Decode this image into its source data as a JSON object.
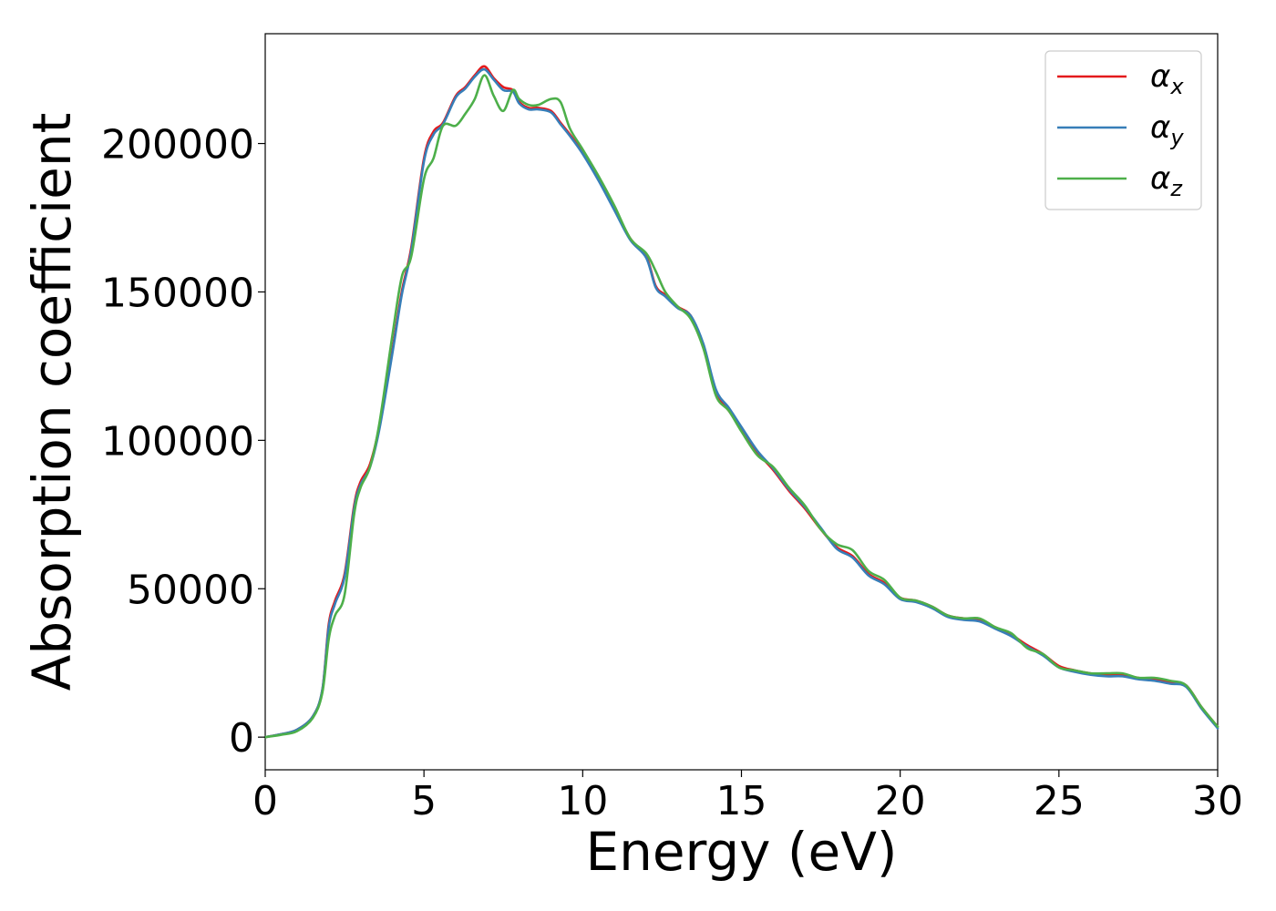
{
  "chart_data": {
    "type": "line",
    "xlabel": "Energy (eV)",
    "ylabel": "Absorption coefficient",
    "xlim": [
      0,
      30
    ],
    "ylim": [
      -11000,
      237000
    ],
    "xticks": [
      0,
      5,
      10,
      15,
      20,
      25,
      30
    ],
    "xtick_labels": [
      "0",
      "5",
      "10",
      "15",
      "20",
      "25",
      "30"
    ],
    "yticks": [
      0,
      50000,
      100000,
      150000,
      200000
    ],
    "ytick_labels": [
      "0",
      "50000",
      "100000",
      "150000",
      "200000"
    ],
    "grid": false,
    "legend_position": "top-right",
    "series": [
      {
        "name": "α",
        "subscript": "x",
        "color": "#e41a1c",
        "x": [
          0,
          0.5,
          1,
          1.5,
          1.8,
          2,
          2.2,
          2.5,
          2.8,
          3,
          3.3,
          3.6,
          4,
          4.3,
          4.6,
          5,
          5.3,
          5.6,
          6,
          6.3,
          6.6,
          6.9,
          7.2,
          7.5,
          7.8,
          8,
          8.3,
          8.6,
          9,
          9.3,
          9.6,
          10,
          10.5,
          11,
          11.5,
          12,
          12.3,
          12.6,
          13,
          13.4,
          13.8,
          14.2,
          14.6,
          15,
          15.5,
          16,
          16.5,
          17,
          17.5,
          18,
          18.5,
          19,
          19.5,
          20,
          20.5,
          21,
          21.5,
          22,
          22.5,
          23,
          23.5,
          24,
          24.5,
          25,
          25.5,
          26,
          26.5,
          27,
          27.5,
          28,
          28.5,
          29,
          29.5,
          30
        ],
        "y": [
          0,
          1000,
          2500,
          7000,
          16000,
          38000,
          46000,
          55000,
          78000,
          86000,
          92000,
          105000,
          130000,
          150000,
          165000,
          195000,
          204000,
          207000,
          216000,
          219000,
          223000,
          226000,
          222000,
          219000,
          218000,
          214000,
          212000,
          212000,
          211000,
          207000,
          203000,
          197000,
          188000,
          178000,
          168000,
          162000,
          152000,
          149000,
          145000,
          142000,
          132000,
          116000,
          110000,
          104000,
          96000,
          90000,
          83000,
          77000,
          70000,
          64000,
          61000,
          55000,
          52000,
          47000,
          46000,
          44000,
          41000,
          40000,
          39500,
          37000,
          34500,
          31000,
          28000,
          24000,
          22500,
          21500,
          21000,
          21000,
          20000,
          19500,
          18500,
          17500,
          10000,
          3500
        ]
      },
      {
        "name": "α",
        "subscript": "y",
        "color": "#377eb8",
        "x": [
          0,
          0.5,
          1,
          1.5,
          1.8,
          2,
          2.2,
          2.5,
          2.8,
          3,
          3.3,
          3.6,
          4,
          4.3,
          4.6,
          5,
          5.3,
          5.6,
          6,
          6.3,
          6.6,
          6.9,
          7.2,
          7.5,
          7.8,
          8,
          8.3,
          8.6,
          9,
          9.3,
          9.6,
          10,
          10.5,
          11,
          11.5,
          12,
          12.3,
          12.6,
          13,
          13.4,
          13.8,
          14.2,
          14.6,
          15,
          15.5,
          16,
          16.5,
          17,
          17.5,
          18,
          18.5,
          19,
          19.5,
          20,
          20.5,
          21,
          21.5,
          22,
          22.5,
          23,
          23.5,
          24,
          24.5,
          25,
          25.5,
          26,
          26.5,
          27,
          27.5,
          28,
          28.5,
          29,
          29.5,
          30
        ],
        "y": [
          0,
          1000,
          2500,
          7000,
          16000,
          37000,
          45000,
          54000,
          77000,
          85000,
          91000,
          104000,
          129000,
          149000,
          164000,
          194000,
          203000,
          206500,
          215500,
          218500,
          222500,
          225000,
          221500,
          218000,
          217500,
          213500,
          211500,
          211500,
          210500,
          206500,
          202500,
          196500,
          187500,
          177500,
          167500,
          161500,
          151500,
          148500,
          144500,
          142000,
          132500,
          117000,
          111000,
          104500,
          96500,
          90500,
          83500,
          77500,
          70500,
          63500,
          60500,
          54500,
          51500,
          46500,
          45500,
          43500,
          40500,
          39500,
          39000,
          36500,
          34000,
          30500,
          27500,
          23500,
          22000,
          21000,
          20500,
          20500,
          19500,
          19000,
          18000,
          17000,
          9500,
          3000
        ]
      },
      {
        "name": "α",
        "subscript": "z",
        "color": "#4daf4a",
        "x": [
          0,
          0.5,
          1,
          1.5,
          1.8,
          2,
          2.2,
          2.5,
          2.8,
          3,
          3.3,
          3.6,
          4,
          4.3,
          4.6,
          5,
          5.3,
          5.6,
          6,
          6.3,
          6.6,
          6.9,
          7.2,
          7.5,
          7.8,
          8,
          8.3,
          8.6,
          9,
          9.3,
          9.6,
          10,
          10.5,
          11,
          11.5,
          12,
          12.3,
          12.6,
          13,
          13.4,
          13.8,
          14.2,
          14.6,
          15,
          15.5,
          16,
          16.5,
          17,
          17.5,
          18,
          18.5,
          19,
          19.5,
          20,
          20.5,
          21,
          21.5,
          22,
          22.5,
          23,
          23.5,
          24,
          24.5,
          25,
          25.5,
          26,
          26.5,
          27,
          27.5,
          28,
          28.5,
          29,
          29.5,
          30
        ],
        "y": [
          0,
          800,
          2000,
          6500,
          15000,
          33000,
          41000,
          48000,
          75000,
          84000,
          91000,
          106000,
          135000,
          155000,
          162000,
          188000,
          195000,
          206000,
          206000,
          210000,
          215000,
          223000,
          216000,
          211000,
          218000,
          215000,
          213000,
          213000,
          215000,
          214000,
          205000,
          198000,
          189000,
          179000,
          168000,
          163000,
          157000,
          150000,
          145000,
          141000,
          131000,
          115000,
          110000,
          103000,
          95000,
          91000,
          84000,
          78000,
          70000,
          65000,
          63000,
          56000,
          53000,
          47000,
          46000,
          44000,
          41000,
          40000,
          40000,
          37000,
          35000,
          30000,
          28000,
          23500,
          22500,
          21500,
          21500,
          21500,
          20000,
          20000,
          19000,
          17500,
          10000,
          3500
        ]
      }
    ]
  }
}
